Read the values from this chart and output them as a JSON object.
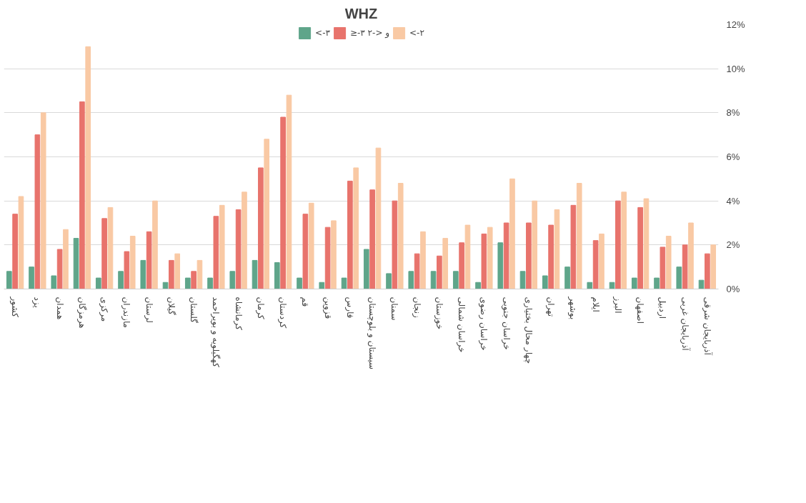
{
  "chart_data": {
    "type": "bar",
    "title": "WHZ",
    "categories": [
      "کشور",
      "یزد",
      "همدان",
      "هرمزگان",
      "مرکزی",
      "مازندران",
      "لرستان",
      "گیلان",
      "گلستان",
      "کهگیلویه و بویراحمد",
      "کرمانشاه",
      "کرمان",
      "کردستان",
      "قم",
      "قزوین",
      "فارس",
      "سیستان و بلوچستان",
      "سمنان",
      "زنجان",
      "خوزستان",
      "خراسان شمالی",
      "خراسان رضوی",
      "خراسان جنوبی",
      "چهار محال بختیاری",
      "تهران",
      "بوشهر",
      "ایلام",
      "البرز",
      "اصفهان",
      "اردبیل",
      "آذربایجان غربی",
      "آذربایجان شرقی"
    ],
    "series": [
      {
        "name": "<-۳",
        "color": "#5fa58a",
        "values": [
          0.8,
          1.0,
          0.6,
          2.3,
          0.5,
          0.8,
          1.3,
          0.3,
          0.5,
          0.5,
          0.8,
          1.3,
          1.2,
          0.5,
          0.3,
          0.5,
          1.8,
          0.7,
          0.8,
          0.8,
          0.8,
          0.3,
          2.1,
          0.8,
          0.6,
          1.0,
          0.3,
          0.3,
          0.5,
          0.5,
          1.0,
          0.4
        ]
      },
      {
        "name": "≥-۳ و <-۲",
        "color": "#e8736c",
        "values": [
          3.4,
          7.0,
          1.8,
          8.5,
          3.2,
          1.7,
          2.6,
          1.3,
          0.8,
          3.3,
          3.6,
          5.5,
          7.8,
          3.4,
          2.8,
          4.9,
          4.5,
          4.0,
          1.6,
          1.5,
          2.1,
          2.5,
          3.0,
          3.0,
          2.9,
          3.8,
          2.2,
          4.0,
          3.7,
          1.9,
          2.0,
          1.6
        ]
      },
      {
        "name": "<-۲",
        "color": "#f9c9a4",
        "values": [
          4.2,
          8.0,
          2.7,
          11.0,
          3.7,
          2.4,
          4.0,
          1.6,
          1.3,
          3.8,
          4.4,
          6.8,
          8.8,
          3.9,
          3.1,
          5.5,
          6.4,
          4.8,
          2.6,
          2.3,
          2.9,
          2.8,
          5.0,
          4.0,
          3.6,
          4.8,
          2.5,
          4.4,
          4.1,
          2.4,
          3.0,
          2.0
        ]
      }
    ],
    "ylim": [
      0,
      12
    ],
    "yticks": [
      {
        "value": 0,
        "label": "0%"
      },
      {
        "value": 2,
        "label": "2%"
      },
      {
        "value": 4,
        "label": "4%"
      },
      {
        "value": 6,
        "label": "6%"
      },
      {
        "value": 8,
        "label": "8%"
      },
      {
        "value": 10,
        "label": "10%"
      },
      {
        "value": 12,
        "label": "12%"
      }
    ],
    "grid": "y",
    "legend": "top"
  }
}
